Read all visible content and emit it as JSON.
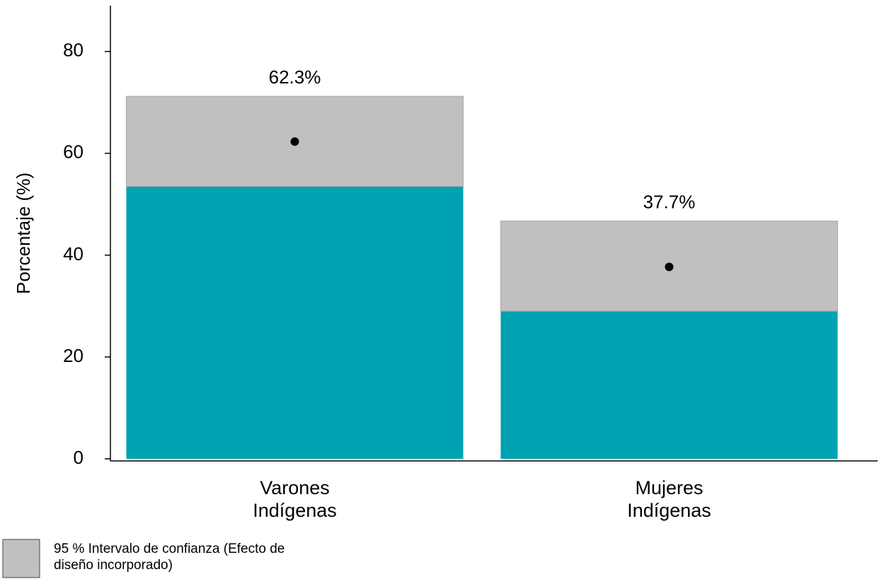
{
  "chart_data": {
    "type": "bar",
    "y_label": "Porcentaje (%)",
    "categories": [
      "Varones Indígenas",
      "Mujeres Indígenas"
    ],
    "values": [
      62.3,
      37.7
    ],
    "value_labels": [
      "62.3%",
      "37.7%"
    ],
    "ci_lower": [
      53.5,
      29.0
    ],
    "ci_upper": [
      71.2,
      46.7
    ],
    "color": "#00a2b2",
    "ci_color": "#c0c0c0",
    "ci_legend": "95 % Intervalo de confianza (Efecto de diseño incorporado)",
    "ylim": [
      0,
      89
    ],
    "yticks": [
      0,
      20,
      40,
      60,
      80
    ]
  }
}
